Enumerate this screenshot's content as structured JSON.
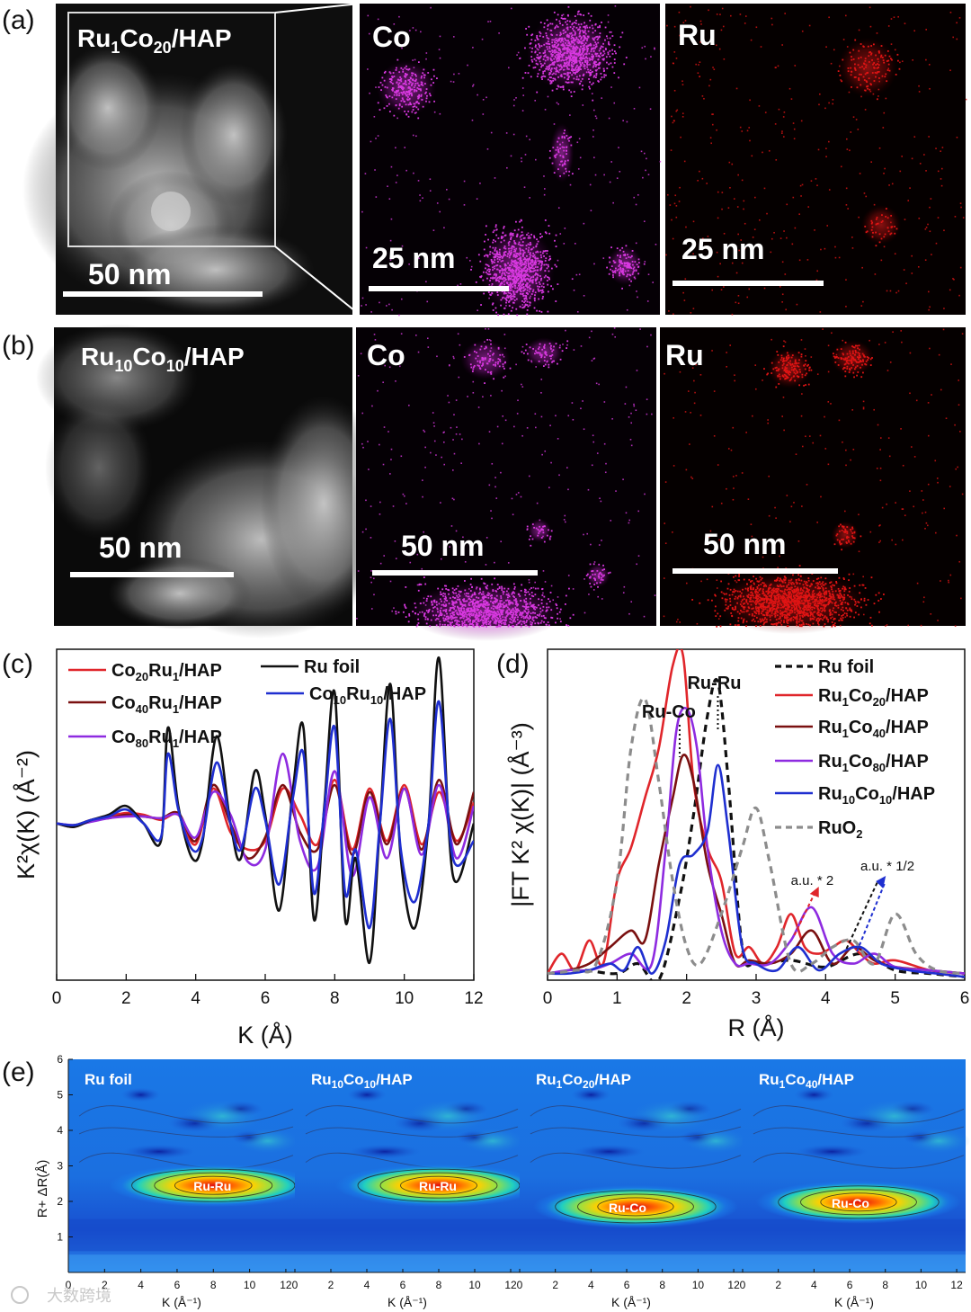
{
  "figure": {
    "watermark": "大数跨境",
    "panel_labels": [
      "(a)",
      "(b)",
      "(c)",
      "(d)",
      "(e)"
    ],
    "row_a": {
      "haadf_label_main": "Ru",
      "haadf_label_sub1": "1",
      "haadf_label_mid": "Co",
      "haadf_label_sub2": "20",
      "haadf_label_tail": "/HAP",
      "haadf_scale": "50 nm",
      "co_label": "Co",
      "co_scale": "25 nm",
      "ru_label": "Ru",
      "ru_scale": "25 nm",
      "co_color": "#d838e0",
      "ru_color": "#e01414"
    },
    "row_b": {
      "haadf_label_main": "Ru",
      "haadf_label_sub1": "10",
      "haadf_label_mid": "Co",
      "haadf_label_sub2": "10",
      "haadf_label_tail": "/HAP",
      "haadf_scale": "50 nm",
      "co_label": "Co",
      "co_scale": "50 nm",
      "ru_label": "Ru",
      "ru_scale": "50 nm"
    }
  },
  "chart_data": [
    {
      "id": "c",
      "type": "line",
      "xlabel": "K (Å)",
      "ylabel": "K²χ(K) (Å⁻²)",
      "xlim": [
        0,
        12
      ],
      "xticks": [
        0,
        2,
        4,
        6,
        8,
        10,
        12
      ],
      "ylim": [
        -0.9,
        1.0
      ],
      "series": [
        {
          "name": "Co20Ru1/HAP",
          "base": "Co",
          "s1": "20",
          "mid": "Ru",
          "s2": "1",
          "tail": "/HAP",
          "color": "#e0262b",
          "x": [
            0,
            0.5,
            1,
            1.5,
            2,
            2.5,
            3,
            3.5,
            4,
            4.5,
            5,
            5.5,
            6,
            6.5,
            7,
            7.5,
            8,
            8.5,
            9,
            9.5,
            10,
            10.5,
            11,
            11.5,
            12
          ],
          "y": [
            0,
            -0.02,
            0.02,
            0.04,
            0.06,
            0.05,
            0.02,
            0.05,
            -0.12,
            0.2,
            -0.05,
            -0.15,
            -0.1,
            0.2,
            0.05,
            -0.12,
            0.25,
            -0.15,
            0.2,
            -0.1,
            0.22,
            -0.12,
            0.18,
            -0.1,
            0.12
          ]
        },
        {
          "name": "Co40Ru1/HAP",
          "base": "Co",
          "s1": "40",
          "mid": "Ru",
          "s2": "1",
          "tail": "/HAP",
          "color": "#7a1010",
          "x": [
            0,
            0.5,
            1,
            1.5,
            2,
            2.5,
            3,
            3.5,
            4,
            4.5,
            5,
            5.5,
            6,
            6.5,
            7,
            7.5,
            8,
            8.5,
            9,
            9.5,
            10,
            10.5,
            11,
            11.5,
            12
          ],
          "y": [
            0,
            -0.01,
            0.02,
            0.03,
            0.05,
            0.04,
            0.03,
            0.06,
            -0.1,
            0.22,
            0.0,
            -0.2,
            -0.08,
            0.22,
            -0.05,
            -0.15,
            0.22,
            -0.18,
            0.18,
            -0.12,
            0.2,
            -0.15,
            0.25,
            -0.12,
            0.18
          ]
        },
        {
          "name": "Co80Ru1/HAP",
          "base": "Co",
          "s1": "80",
          "mid": "Ru",
          "s2": "1",
          "tail": "/HAP",
          "color": "#8e2be0",
          "x": [
            0,
            0.5,
            1,
            1.5,
            2,
            2.5,
            3,
            3.5,
            4,
            4.5,
            5,
            5.5,
            6,
            6.5,
            7,
            7.5,
            8,
            8.5,
            9,
            9.5,
            10,
            10.5,
            11,
            11.5,
            12
          ],
          "y": [
            0,
            -0.01,
            0.01,
            0.03,
            0.04,
            0.04,
            0.03,
            0.05,
            -0.08,
            0.18,
            0.05,
            -0.22,
            -0.15,
            0.4,
            -0.1,
            -0.25,
            0.3,
            -0.3,
            0.15,
            -0.2,
            0.2,
            -0.18,
            0.22,
            -0.2,
            0.1
          ]
        },
        {
          "name": "Ru foil",
          "base": "Ru foil",
          "color": "#111111",
          "x": [
            0,
            0.5,
            1,
            1.5,
            2,
            2.5,
            3,
            3.2,
            3.5,
            3.9,
            4.2,
            4.6,
            5,
            5.3,
            5.7,
            6,
            6.4,
            6.8,
            7.1,
            7.4,
            7.7,
            8,
            8.3,
            8.6,
            9,
            9.3,
            9.6,
            9.9,
            10.3,
            10.7,
            11,
            11.4,
            12
          ],
          "y": [
            0,
            -0.02,
            0.02,
            0.05,
            0.1,
            0.0,
            -0.1,
            0.55,
            0.1,
            -0.2,
            -0.1,
            0.5,
            0.0,
            -0.2,
            0.3,
            0.05,
            -0.5,
            0.2,
            0.55,
            -0.55,
            0.1,
            0.75,
            -0.55,
            -0.2,
            -0.8,
            0.0,
            0.8,
            -0.2,
            -0.6,
            0.0,
            0.95,
            -0.3,
            0.0
          ]
        },
        {
          "name": "Co10Ru10/HAP",
          "base": "Co",
          "s1": "10",
          "mid": "Ru",
          "s2": "10",
          "tail": "/HAP",
          "color": "#1f2fd0",
          "x": [
            0,
            0.5,
            1,
            1.5,
            2,
            2.5,
            3,
            3.2,
            3.5,
            3.9,
            4.2,
            4.6,
            5,
            5.3,
            5.7,
            6,
            6.4,
            6.8,
            7.1,
            7.4,
            7.7,
            8,
            8.3,
            8.6,
            9,
            9.3,
            9.6,
            9.9,
            10.3,
            10.7,
            11,
            11.4,
            12
          ],
          "y": [
            0,
            -0.01,
            0.02,
            0.04,
            0.08,
            0.0,
            -0.08,
            0.4,
            0.08,
            -0.15,
            -0.08,
            0.35,
            0.0,
            -0.15,
            0.2,
            0.02,
            -0.35,
            0.15,
            0.4,
            -0.4,
            0.08,
            0.55,
            -0.4,
            -0.15,
            -0.6,
            0.0,
            0.6,
            -0.15,
            -0.45,
            0.0,
            0.7,
            -0.2,
            -0.1
          ]
        }
      ]
    },
    {
      "id": "d",
      "type": "line",
      "xlabel": "R (Å)",
      "ylabel": "|FT K² χ(K)| (Å⁻³)",
      "xlim": [
        0,
        6
      ],
      "xticks": [
        0,
        1,
        2,
        3,
        4,
        5,
        6
      ],
      "ylim": [
        0,
        1.0
      ],
      "annotations": {
        "ru_co": "Ru-Co",
        "ru_ru": "Ru-Ru",
        "au2": "a.u. * 2",
        "au_half": "a.u. * 1/2"
      },
      "series": [
        {
          "name": "Ru foil",
          "base": "Ru foil",
          "color": "#111111",
          "dash": "8,6",
          "x": [
            0,
            0.5,
            1,
            1.3,
            1.6,
            1.9,
            2.1,
            2.3,
            2.45,
            2.6,
            2.8,
            3.0,
            3.5,
            4.0,
            4.5,
            5.0,
            5.5,
            6
          ],
          "y": [
            0.02,
            0.03,
            0.02,
            0.05,
            0.0,
            0.25,
            0.5,
            0.8,
            0.9,
            0.6,
            0.1,
            0.05,
            0.06,
            0.04,
            0.08,
            0.03,
            0.02,
            0.01
          ]
        },
        {
          "name": "Ru1Co20/HAP",
          "base": "Ru",
          "s1": "1",
          "mid": "Co",
          "s2": "20",
          "tail": "/HAP",
          "color": "#e0262b",
          "x": [
            0,
            0.2,
            0.4,
            0.6,
            0.8,
            1.0,
            1.2,
            1.4,
            1.6,
            1.8,
            1.95,
            2.1,
            2.3,
            2.5,
            2.7,
            2.9,
            3.1,
            3.3,
            3.5,
            3.7,
            3.9,
            4.1,
            4.3,
            4.5,
            4.7,
            5.0,
            5.5,
            6
          ],
          "y": [
            0.02,
            0.08,
            0.03,
            0.12,
            0.05,
            0.3,
            0.4,
            0.55,
            0.7,
            0.95,
            0.98,
            0.6,
            0.4,
            0.3,
            0.08,
            0.1,
            0.05,
            0.1,
            0.2,
            0.1,
            0.08,
            0.1,
            0.12,
            0.08,
            0.05,
            0.06,
            0.03,
            0.02
          ]
        },
        {
          "name": "Ru1Co40/HAP",
          "base": "Ru",
          "s1": "1",
          "mid": "Co",
          "s2": "40",
          "tail": "/HAP",
          "color": "#7a1010",
          "x": [
            0,
            0.3,
            0.6,
            0.9,
            1.2,
            1.4,
            1.6,
            1.8,
            1.95,
            2.1,
            2.3,
            2.5,
            2.7,
            2.9,
            3.2,
            3.5,
            3.8,
            4.1,
            4.4,
            4.7,
            5.0,
            5.5,
            6
          ],
          "y": [
            0.02,
            0.03,
            0.05,
            0.1,
            0.15,
            0.12,
            0.35,
            0.55,
            0.68,
            0.6,
            0.35,
            0.2,
            0.05,
            0.06,
            0.05,
            0.08,
            0.15,
            0.05,
            0.1,
            0.06,
            0.04,
            0.03,
            0.02
          ]
        },
        {
          "name": "Ru1Co80/HAP",
          "base": "Ru",
          "s1": "1",
          "mid": "Co",
          "s2": "80",
          "tail": "/HAP",
          "color": "#8e2be0",
          "x": [
            0,
            0.3,
            0.6,
            0.9,
            1.2,
            1.5,
            1.7,
            1.85,
            2.0,
            2.15,
            2.3,
            2.5,
            2.7,
            2.9,
            3.2,
            3.5,
            3.8,
            4.1,
            4.4,
            4.7,
            5.0,
            5.5,
            6
          ],
          "y": [
            0.02,
            0.03,
            0.03,
            0.05,
            0.08,
            0.05,
            0.4,
            0.75,
            0.82,
            0.7,
            0.4,
            0.15,
            0.05,
            0.05,
            0.05,
            0.12,
            0.22,
            0.08,
            0.05,
            0.08,
            0.04,
            0.03,
            0.02
          ]
        },
        {
          "name": "Ru10Co10/HAP",
          "base": "Ru",
          "s1": "10",
          "mid": "Co",
          "s2": "10",
          "tail": "/HAP",
          "color": "#1f2fd0",
          "x": [
            0,
            0.3,
            0.6,
            0.9,
            1.1,
            1.3,
            1.5,
            1.7,
            1.9,
            2.1,
            2.3,
            2.45,
            2.6,
            2.8,
            3.0,
            3.3,
            3.6,
            3.9,
            4.2,
            4.5,
            4.8,
            5.2,
            5.6,
            6
          ],
          "y": [
            0.02,
            0.02,
            0.03,
            0.05,
            0.03,
            0.1,
            0.02,
            0.12,
            0.35,
            0.38,
            0.45,
            0.65,
            0.45,
            0.1,
            0.05,
            0.03,
            0.1,
            0.03,
            0.08,
            0.1,
            0.05,
            0.03,
            0.02,
            0.01
          ]
        },
        {
          "name": "RuO2",
          "base": "RuO",
          "s1": "",
          "mid": "",
          "s2": "2",
          "tail": "",
          "color": "#8c8c8c",
          "dash": "8,6",
          "x": [
            0,
            0.4,
            0.7,
            1.0,
            1.2,
            1.4,
            1.6,
            1.8,
            2.0,
            2.2,
            2.5,
            2.8,
            3.0,
            3.2,
            3.5,
            3.8,
            4.1,
            4.4,
            4.7,
            5.0,
            5.3,
            5.6,
            6
          ],
          "y": [
            0.02,
            0.03,
            0.05,
            0.3,
            0.7,
            0.85,
            0.6,
            0.3,
            0.1,
            0.05,
            0.2,
            0.4,
            0.52,
            0.35,
            0.05,
            0.05,
            0.1,
            0.12,
            0.05,
            0.2,
            0.08,
            0.03,
            0.02
          ]
        }
      ]
    },
    {
      "id": "e",
      "type": "heatmap",
      "ylabel": "R+ ΔR(Å)",
      "xlabel": "K (Å⁻¹)",
      "yticks": [
        1,
        2,
        3,
        4,
        5,
        6
      ],
      "xticks": [
        0,
        2,
        4,
        6,
        8,
        10,
        12
      ],
      "ylim": [
        0,
        6
      ],
      "xlim": [
        0,
        12.5
      ],
      "panels": [
        {
          "title_base": "Ru foil",
          "s1": "",
          "mid": "",
          "s2": "",
          "tail": "",
          "peak_label": "Ru-Ru",
          "peak_k": 8.0,
          "peak_r": 2.45
        },
        {
          "title_base": "Ru",
          "s1": "10",
          "mid": "Co",
          "s2": "10",
          "tail": "/HAP",
          "peak_label": "Ru-Ru",
          "peak_k": 8.0,
          "peak_r": 2.45
        },
        {
          "title_base": "Ru",
          "s1": "1",
          "mid": "Co",
          "s2": "20",
          "tail": "/HAP",
          "peak_label": "Ru-Co",
          "peak_k": 6.5,
          "peak_r": 1.85
        },
        {
          "title_base": "Ru",
          "s1": "1",
          "mid": "Co",
          "s2": "40",
          "tail": "/HAP",
          "peak_label": "Ru-Co",
          "peak_k": 6.5,
          "peak_r": 1.98
        }
      ]
    }
  ]
}
